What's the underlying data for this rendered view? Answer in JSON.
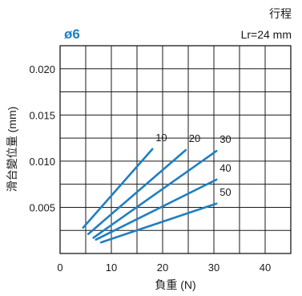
{
  "header": {
    "model": "ø6",
    "note_line1": "行程",
    "note_line2": "Lr=24 mm"
  },
  "chart_data": {
    "type": "line",
    "title": "ø6",
    "xlabel": "負重 (N)",
    "ylabel": "滑台變位量 (mm)",
    "xlim": [
      0,
      45
    ],
    "ylim": [
      0,
      0.0225
    ],
    "xticks": [
      0,
      10,
      20,
      30,
      40
    ],
    "yticks": [
      0.005,
      0.01,
      0.015,
      0.02
    ],
    "xtick_labels": [
      "0",
      "10",
      "20",
      "30",
      "40"
    ],
    "ytick_labels": [
      "0.005",
      "0.010",
      "0.015",
      "0.020"
    ],
    "grid": true,
    "line_color": "#1f7fc1",
    "series": [
      {
        "name": "10",
        "x": [
          4.5,
          18.0
        ],
        "y": [
          0.0028,
          0.0113
        ]
      },
      {
        "name": "20",
        "x": [
          5.5,
          24.5
        ],
        "y": [
          0.0021,
          0.0112
        ]
      },
      {
        "name": "30",
        "x": [
          6.5,
          30.5
        ],
        "y": [
          0.0017,
          0.0111
        ]
      },
      {
        "name": "40",
        "x": [
          7.0,
          30.5
        ],
        "y": [
          0.0015,
          0.008
        ]
      },
      {
        "name": "50",
        "x": [
          8.0,
          30.5
        ],
        "y": [
          0.0012,
          0.0054
        ]
      }
    ]
  }
}
